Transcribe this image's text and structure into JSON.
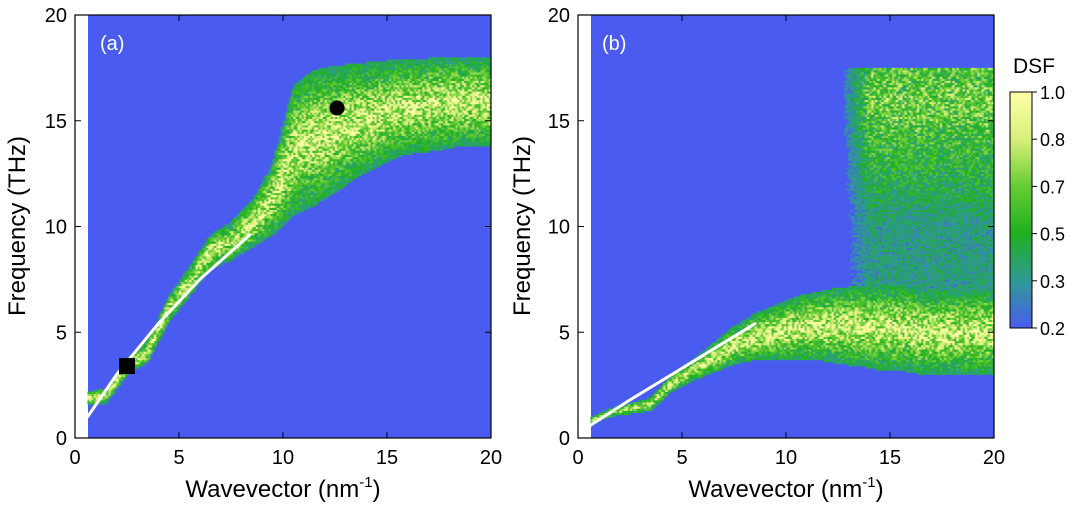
{
  "colors": {
    "background": "#4a5cf0",
    "colormap": [
      "#4a5cf0",
      "#2f9a94",
      "#1fb020",
      "#66cc33",
      "#d8f07a",
      "#ffffa8"
    ],
    "fit_line": "#ffffff",
    "marker": "#000000",
    "axis": "#000000"
  },
  "chart_data": [
    {
      "type": "heatmap",
      "panel_label": "(a)",
      "xlabel": "Wavevector (nm",
      "xlabel_sup": "-1",
      "xlabel_close": ")",
      "ylabel": "Frequency (THz)",
      "xlim": [
        0,
        20
      ],
      "ylim": [
        0,
        20
      ],
      "xticks": [
        "0",
        "5",
        "10",
        "15",
        "20"
      ],
      "yticks": [
        "0",
        "5",
        "10",
        "15",
        "20"
      ],
      "data_start_q": 0.6,
      "branch": [
        {
          "q": 0.6,
          "f": 1.9,
          "w": 0.6
        },
        {
          "q": 1.5,
          "f": 2.0,
          "w": 0.7
        },
        {
          "q": 2.5,
          "f": 3.4,
          "w": 0.8
        },
        {
          "q": 3.5,
          "f": 4.1,
          "w": 1.0
        },
        {
          "q": 4.5,
          "f": 6.1,
          "w": 1.2
        },
        {
          "q": 5.5,
          "f": 7.4,
          "w": 1.4
        },
        {
          "q": 6.5,
          "f": 8.8,
          "w": 1.6
        },
        {
          "q": 7.5,
          "f": 9.3,
          "w": 1.8
        },
        {
          "q": 8.5,
          "f": 10.1,
          "w": 2.2
        },
        {
          "q": 9.5,
          "f": 11.3,
          "w": 3.4
        },
        {
          "q": 10.5,
          "f": 13.6,
          "w": 6.2
        },
        {
          "q": 11.5,
          "f": 14.2,
          "w": 6.4
        },
        {
          "q": 12.5,
          "f": 14.6,
          "w": 6.0
        },
        {
          "q": 13.5,
          "f": 15.0,
          "w": 5.4
        },
        {
          "q": 14.5,
          "f": 15.3,
          "w": 5.0
        },
        {
          "q": 15.5,
          "f": 15.6,
          "w": 4.6
        },
        {
          "q": 16.5,
          "f": 15.7,
          "w": 4.4
        },
        {
          "q": 17.5,
          "f": 15.8,
          "w": 4.4
        },
        {
          "q": 18.5,
          "f": 15.9,
          "w": 4.2
        },
        {
          "q": 19.5,
          "f": 15.9,
          "w": 4.2
        }
      ],
      "fit_line": [
        [
          0.6,
          1.0
        ],
        [
          2.0,
          3.0
        ],
        [
          4.0,
          5.4
        ],
        [
          6.0,
          7.5
        ],
        [
          8.4,
          9.6
        ]
      ],
      "markers": [
        {
          "shape": "square",
          "q": 2.5,
          "f": 3.4
        },
        {
          "shape": "circle",
          "q": 12.6,
          "f": 15.6
        }
      ]
    },
    {
      "type": "heatmap",
      "panel_label": "(b)",
      "xlabel": "Wavevector (nm",
      "xlabel_sup": "-1",
      "xlabel_close": ")",
      "ylabel": "Frequency (THz)",
      "xlim": [
        0,
        20
      ],
      "ylim": [
        0,
        20
      ],
      "xticks": [
        "0",
        "5",
        "10",
        "15",
        "20"
      ],
      "yticks": [
        "0",
        "5",
        "10",
        "15",
        "20"
      ],
      "data_start_q": 0.6,
      "branch": [
        {
          "q": 0.6,
          "f": 0.8,
          "w": 0.3
        },
        {
          "q": 1.5,
          "f": 1.2,
          "w": 0.4
        },
        {
          "q": 2.5,
          "f": 1.4,
          "w": 0.5
        },
        {
          "q": 3.5,
          "f": 1.6,
          "w": 0.6
        },
        {
          "q": 4.5,
          "f": 2.6,
          "w": 0.8
        },
        {
          "q": 5.5,
          "f": 3.2,
          "w": 1.0
        },
        {
          "q": 6.5,
          "f": 3.8,
          "w": 1.4
        },
        {
          "q": 7.5,
          "f": 4.4,
          "w": 1.8
        },
        {
          "q": 8.5,
          "f": 4.8,
          "w": 2.2
        },
        {
          "q": 9.5,
          "f": 5.0,
          "w": 2.6
        },
        {
          "q": 10.5,
          "f": 5.2,
          "w": 3.0
        },
        {
          "q": 11.5,
          "f": 5.3,
          "w": 3.2
        },
        {
          "q": 12.5,
          "f": 5.3,
          "w": 3.6
        },
        {
          "q": 13.5,
          "f": 5.3,
          "w": 3.8
        },
        {
          "q": 14.5,
          "f": 5.2,
          "w": 4.0
        },
        {
          "q": 15.5,
          "f": 5.2,
          "w": 4.0
        },
        {
          "q": 16.5,
          "f": 5.0,
          "w": 4.0
        },
        {
          "q": 17.5,
          "f": 5.0,
          "w": 4.0
        },
        {
          "q": 18.5,
          "f": 5.0,
          "w": 4.0
        },
        {
          "q": 19.5,
          "f": 5.0,
          "w": 4.0
        }
      ],
      "upper_band": {
        "q_start": 12.5,
        "f_min": 7.0,
        "f_max": 17.5,
        "peak_f": 16.0
      },
      "fit_line": [
        [
          0.6,
          0.6
        ],
        [
          2.5,
          1.8
        ],
        [
          4.5,
          3.0
        ],
        [
          6.5,
          4.2
        ],
        [
          8.5,
          5.4
        ]
      ],
      "markers": []
    }
  ],
  "colorbar": {
    "title": "DSF",
    "ticks": [
      "1.0",
      "0.8",
      "0.7",
      "0.5",
      "0.3",
      "0.2"
    ]
  }
}
